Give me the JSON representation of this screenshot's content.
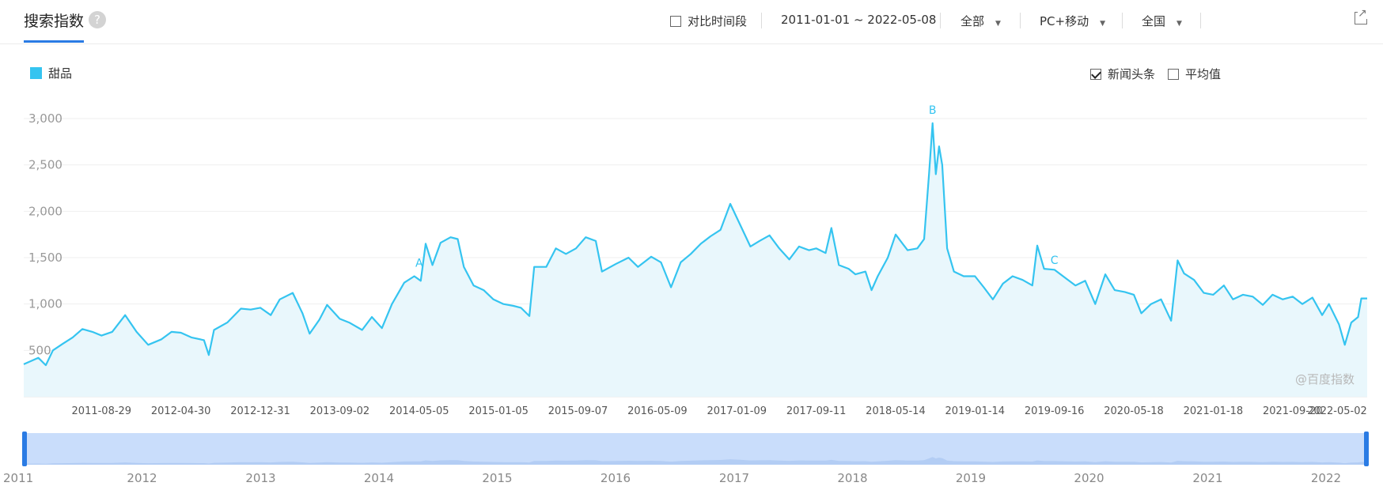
{
  "header": {
    "title": "搜索指数",
    "help_icon": "?",
    "compare_label": "对比时间段",
    "date_range": "2011-01-01 ~ 2022-05-08",
    "scope": "全部",
    "device": "PC+移动",
    "region": "全国",
    "caret": "▼"
  },
  "options": {
    "news_label": "新闻头条",
    "news_checked": true,
    "avg_label": "平均值",
    "avg_checked": false
  },
  "legend": {
    "label": "甜品"
  },
  "watermark": "@百度指数",
  "colors": {
    "line": "#35c4f0",
    "fill": "#e9f7fc",
    "accent": "#2a7be4",
    "slider": "#c9ddfb"
  },
  "chart_data": {
    "type": "area",
    "series": [
      {
        "name": "甜品",
        "points": [
          [
            "2011-01-01",
            350
          ],
          [
            "2011-02-15",
            420
          ],
          [
            "2011-03-10",
            340
          ],
          [
            "2011-04-01",
            500
          ],
          [
            "2011-05-01",
            570
          ],
          [
            "2011-06-01",
            640
          ],
          [
            "2011-07-01",
            730
          ],
          [
            "2011-08-01",
            700
          ],
          [
            "2011-08-29",
            660
          ],
          [
            "2011-10-01",
            700
          ],
          [
            "2011-11-10",
            880
          ],
          [
            "2011-12-15",
            700
          ],
          [
            "2012-01-20",
            560
          ],
          [
            "2012-03-01",
            620
          ],
          [
            "2012-04-01",
            700
          ],
          [
            "2012-04-30",
            690
          ],
          [
            "2012-06-01",
            640
          ],
          [
            "2012-07-10",
            610
          ],
          [
            "2012-07-25",
            450
          ],
          [
            "2012-08-10",
            720
          ],
          [
            "2012-09-20",
            800
          ],
          [
            "2012-11-01",
            950
          ],
          [
            "2012-12-01",
            940
          ],
          [
            "2012-12-31",
            960
          ],
          [
            "2013-02-01",
            880
          ],
          [
            "2013-03-01",
            1050
          ],
          [
            "2013-04-10",
            1120
          ],
          [
            "2013-05-10",
            900
          ],
          [
            "2013-06-01",
            680
          ],
          [
            "2013-07-01",
            830
          ],
          [
            "2013-07-25",
            990
          ],
          [
            "2013-09-02",
            840
          ],
          [
            "2013-10-01",
            800
          ],
          [
            "2013-11-10",
            720
          ],
          [
            "2013-12-10",
            860
          ],
          [
            "2014-01-10",
            740
          ],
          [
            "2014-02-10",
            1000
          ],
          [
            "2014-03-20",
            1230
          ],
          [
            "2014-04-20",
            1300
          ],
          [
            "2014-05-10",
            1250
          ],
          [
            "2014-05-25",
            1650
          ],
          [
            "2014-06-15",
            1420
          ],
          [
            "2014-07-10",
            1660
          ],
          [
            "2014-08-10",
            1720
          ],
          [
            "2014-09-01",
            1700
          ],
          [
            "2014-09-20",
            1400
          ],
          [
            "2014-10-20",
            1200
          ],
          [
            "2014-11-20",
            1150
          ],
          [
            "2014-12-20",
            1050
          ],
          [
            "2015-01-20",
            1000
          ],
          [
            "2015-02-20",
            980
          ],
          [
            "2015-03-15",
            960
          ],
          [
            "2015-04-10",
            870
          ],
          [
            "2015-04-25",
            1400
          ],
          [
            "2015-06-01",
            1400
          ],
          [
            "2015-07-01",
            1600
          ],
          [
            "2015-08-01",
            1540
          ],
          [
            "2015-09-01",
            1600
          ],
          [
            "2015-10-01",
            1720
          ],
          [
            "2015-11-01",
            1680
          ],
          [
            "2015-11-20",
            1350
          ],
          [
            "2016-01-01",
            1430
          ],
          [
            "2016-02-10",
            1500
          ],
          [
            "2016-03-10",
            1400
          ],
          [
            "2016-04-20",
            1510
          ],
          [
            "2016-05-20",
            1450
          ],
          [
            "2016-06-20",
            1180
          ],
          [
            "2016-07-20",
            1450
          ],
          [
            "2016-08-20",
            1540
          ],
          [
            "2016-09-20",
            1650
          ],
          [
            "2016-10-20",
            1730
          ],
          [
            "2016-11-20",
            1800
          ],
          [
            "2016-12-20",
            2080
          ],
          [
            "2017-01-20",
            1850
          ],
          [
            "2017-02-20",
            1620
          ],
          [
            "2017-03-20",
            1680
          ],
          [
            "2017-04-20",
            1740
          ],
          [
            "2017-05-20",
            1600
          ],
          [
            "2017-06-20",
            1480
          ],
          [
            "2017-07-20",
            1620
          ],
          [
            "2017-08-20",
            1580
          ],
          [
            "2017-09-11",
            1600
          ],
          [
            "2017-10-10",
            1550
          ],
          [
            "2017-10-28",
            1820
          ],
          [
            "2017-11-20",
            1420
          ],
          [
            "2017-12-20",
            1380
          ],
          [
            "2018-01-10",
            1320
          ],
          [
            "2018-02-10",
            1350
          ],
          [
            "2018-03-01",
            1150
          ],
          [
            "2018-03-20",
            1300
          ],
          [
            "2018-04-20",
            1500
          ],
          [
            "2018-05-14",
            1750
          ],
          [
            "2018-06-20",
            1580
          ],
          [
            "2018-07-20",
            1600
          ],
          [
            "2018-08-10",
            1700
          ],
          [
            "2018-08-25",
            2400
          ],
          [
            "2018-09-05",
            2950
          ],
          [
            "2018-09-15",
            2400
          ],
          [
            "2018-09-25",
            2700
          ],
          [
            "2018-10-05",
            2500
          ],
          [
            "2018-10-20",
            1600
          ],
          [
            "2018-11-10",
            1350
          ],
          [
            "2018-12-10",
            1300
          ],
          [
            "2019-01-14",
            1300
          ],
          [
            "2019-02-10",
            1180
          ],
          [
            "2019-03-10",
            1050
          ],
          [
            "2019-04-10",
            1220
          ],
          [
            "2019-05-10",
            1300
          ],
          [
            "2019-06-10",
            1260
          ],
          [
            "2019-07-10",
            1200
          ],
          [
            "2019-07-25",
            1630
          ],
          [
            "2019-08-15",
            1380
          ],
          [
            "2019-09-16",
            1370
          ],
          [
            "2019-10-20",
            1280
          ],
          [
            "2019-11-20",
            1200
          ],
          [
            "2019-12-20",
            1250
          ],
          [
            "2020-01-20",
            1000
          ],
          [
            "2020-02-20",
            1320
          ],
          [
            "2020-03-20",
            1150
          ],
          [
            "2020-04-20",
            1130
          ],
          [
            "2020-05-18",
            1100
          ],
          [
            "2020-06-10",
            900
          ],
          [
            "2020-07-10",
            1000
          ],
          [
            "2020-08-10",
            1050
          ],
          [
            "2020-09-10",
            820
          ],
          [
            "2020-09-30",
            1470
          ],
          [
            "2020-10-20",
            1330
          ],
          [
            "2020-11-20",
            1260
          ],
          [
            "2020-12-20",
            1120
          ],
          [
            "2021-01-18",
            1100
          ],
          [
            "2021-02-20",
            1200
          ],
          [
            "2021-03-20",
            1050
          ],
          [
            "2021-04-20",
            1100
          ],
          [
            "2021-05-20",
            1080
          ],
          [
            "2021-06-20",
            990
          ],
          [
            "2021-07-20",
            1100
          ],
          [
            "2021-08-20",
            1050
          ],
          [
            "2021-09-20",
            1080
          ],
          [
            "2021-10-20",
            1000
          ],
          [
            "2021-11-20",
            1070
          ],
          [
            "2021-12-20",
            880
          ],
          [
            "2022-01-10",
            1000
          ],
          [
            "2022-02-10",
            780
          ],
          [
            "2022-02-28",
            560
          ],
          [
            "2022-03-20",
            800
          ],
          [
            "2022-04-10",
            860
          ],
          [
            "2022-04-20",
            1060
          ],
          [
            "2022-05-08",
            1060
          ]
        ]
      }
    ],
    "ylim": [
      0,
      3000
    ],
    "yticks": [
      {
        "value": 3000,
        "label": "3,000"
      },
      {
        "value": 2500,
        "label": "2,500"
      },
      {
        "value": 2000,
        "label": "2,000"
      },
      {
        "value": 1500,
        "label": "1,500"
      },
      {
        "value": 1000,
        "label": "1,000"
      },
      {
        "value": 500,
        "label": "500"
      }
    ],
    "xticks": [
      "2011-08-29",
      "2012-04-30",
      "2012-12-31",
      "2013-09-02",
      "2014-05-05",
      "2015-01-05",
      "2015-09-07",
      "2016-05-09",
      "2017-01-09",
      "2017-09-11",
      "2018-05-14",
      "2019-01-14",
      "2019-09-16",
      "2020-05-18",
      "2021-01-18",
      "2021-09-20",
      "2022-05-02"
    ],
    "annotations": [
      {
        "label": "A",
        "x": "2014-05-05",
        "value": 1400
      },
      {
        "label": "B",
        "x": "2018-09-05",
        "value": 3050
      },
      {
        "label": "C",
        "x": "2019-09-16",
        "value": 1430
      }
    ],
    "grid": true,
    "legend": "top-left",
    "navigator_years": [
      "2011",
      "2012",
      "2013",
      "2014",
      "2015",
      "2016",
      "2017",
      "2018",
      "2019",
      "2020",
      "2021",
      "2022"
    ]
  }
}
